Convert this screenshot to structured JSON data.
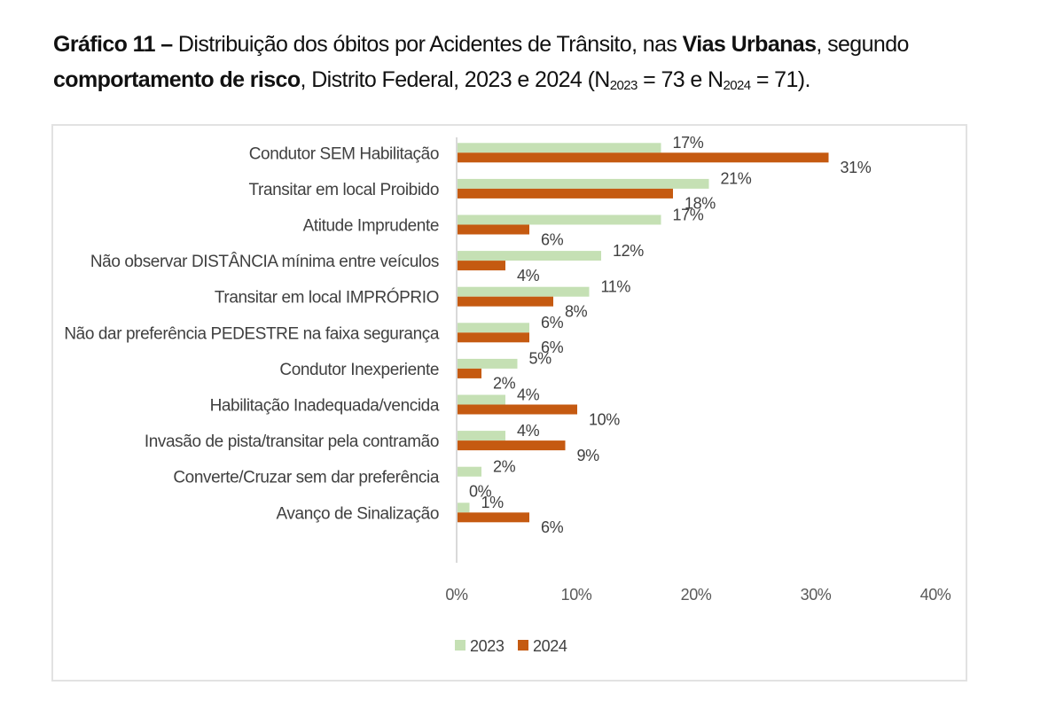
{
  "caption": {
    "prefix_bold": "Gráfico 11 –",
    "part1": " Distribuição dos óbitos por Acidentes de Trânsito, nas ",
    "bold2": "Vias Urbanas",
    "part2": ", segundo ",
    "bold3": "comportamento de risco",
    "part3": ", Distrito Federal, 2023 e 2024 (N",
    "sub1": "2023",
    "part4": " = 73 e N",
    "sub2": "2024",
    "part5": " = 71)."
  },
  "chart_data": {
    "type": "bar",
    "orientation": "horizontal",
    "title": "Gráfico 11 – Distribuição dos óbitos por Acidentes de Trânsito, nas Vias Urbanas, segundo comportamento de risco, Distrito Federal, 2023 e 2024 (N2023 = 73 e N2024 = 71).",
    "categories": [
      "Condutor SEM Habilitação",
      "Transitar em local Proibido",
      "Atitude Imprudente",
      "Não observar DISTÂNCIA mínima entre veículos",
      "Transitar em local IMPRÓPRIO",
      "Não dar preferência PEDESTRE na faixa segurança",
      "Condutor Inexperiente",
      "Habilitação Inadequada/vencida",
      "Invasão de pista/transitar pela contramão",
      "Converte/Cruzar sem dar preferência",
      "Avanço de Sinalização"
    ],
    "series": [
      {
        "name": "2023",
        "color": "#c5e0b4",
        "values": [
          17,
          21,
          17,
          12,
          11,
          6,
          5,
          4,
          4,
          2,
          1
        ],
        "labels": [
          "17%",
          "21%",
          "17%",
          "12%",
          "11%",
          "6%",
          "5%",
          "4%",
          "4%",
          "2%",
          "1%"
        ]
      },
      {
        "name": "2024",
        "color": "#c55a11",
        "values": [
          31,
          18,
          6,
          4,
          8,
          6,
          2,
          10,
          9,
          0,
          6
        ],
        "labels": [
          "31%",
          "18%",
          "6%",
          "4%",
          "8%",
          "6%",
          "2%",
          "10%",
          "9%",
          "0%",
          "6%"
        ]
      }
    ],
    "xlim": [
      0,
      40
    ],
    "xticks": [
      0,
      10,
      20,
      30,
      40
    ],
    "xtick_labels": [
      "0%",
      "10%",
      "20%",
      "30%",
      "40%"
    ],
    "xlabel": "",
    "ylabel": "",
    "grid": false,
    "legend": {
      "position": "bottom-left",
      "entries": [
        "2023",
        "2024"
      ]
    }
  }
}
